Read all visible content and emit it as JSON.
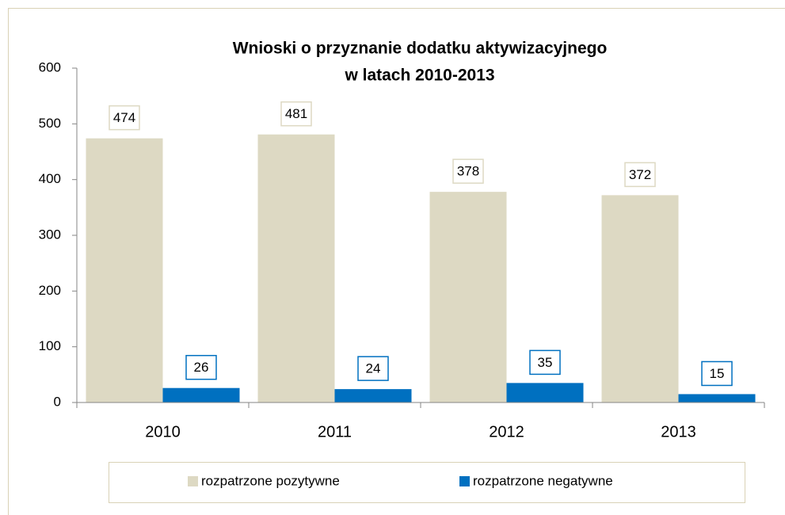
{
  "chart_data": {
    "type": "bar",
    "title": [
      "Wnioski o przyznanie dodatku aktywizacyjnego",
      "w latach 2010-2013"
    ],
    "categories": [
      "2010",
      "2011",
      "2012",
      "2013"
    ],
    "series": [
      {
        "name": "rozpatrzone pozytywne",
        "color": "#ddd9c3",
        "values": [
          474,
          481,
          378,
          372
        ]
      },
      {
        "name": "rozpatrzone negatywne",
        "color": "#0070c0",
        "values": [
          26,
          24,
          35,
          15
        ]
      }
    ],
    "ylim": [
      0,
      600
    ],
    "yticks": [
      0,
      100,
      200,
      300,
      400,
      500,
      600
    ],
    "grid": false,
    "legend": "bottom"
  }
}
